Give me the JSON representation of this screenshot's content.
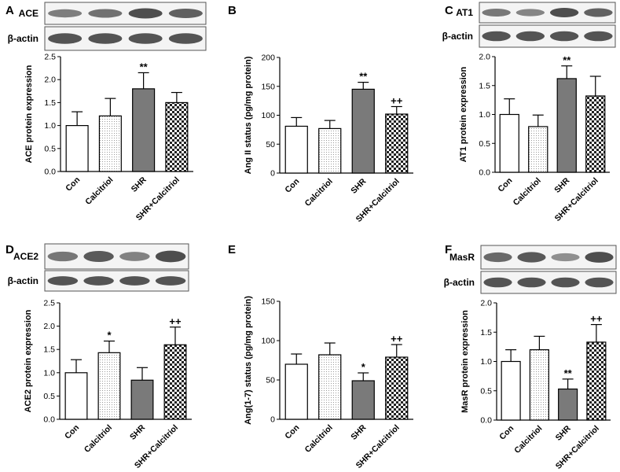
{
  "figure": {
    "panels": [
      {
        "letter": "A",
        "protein": "ACE",
        "loading": "β-actin"
      },
      {
        "letter": "B"
      },
      {
        "letter": "C",
        "protein": "AT1",
        "loading": "β-actin"
      },
      {
        "letter": "D",
        "protein": "ACE2",
        "loading": "β-actin"
      },
      {
        "letter": "E"
      },
      {
        "letter": "F",
        "protein": "MasR",
        "loading": "β-actin"
      }
    ]
  },
  "colors": {
    "con": "#ffffff",
    "calcitriol": "#f2f2f2",
    "shr": "#7a7a7a",
    "shr_calcitriol": "checker",
    "axis": "#000000"
  },
  "chart_data": [
    {
      "type": "bar",
      "panel": "A",
      "categories": [
        "Con",
        "Calcitriol",
        "SHR",
        "SHR+Calcitriol"
      ],
      "values": [
        1.0,
        1.21,
        1.8,
        1.5
      ],
      "errors": [
        0.3,
        0.38,
        0.35,
        0.22
      ],
      "annotations": [
        "",
        "",
        "**",
        ""
      ],
      "xlabel": "",
      "ylabel": "ACE protein expression",
      "ylim": [
        0,
        2.5
      ],
      "yticks": [
        "0.0",
        "0.5",
        "1.0",
        "1.5",
        "2.0",
        "2.5"
      ],
      "grid": false
    },
    {
      "type": "bar",
      "panel": "B",
      "categories": [
        "Con",
        "Calcitriol",
        "SHR",
        "SHR+Calcitriol"
      ],
      "values": [
        81,
        77,
        145,
        102
      ],
      "errors": [
        15,
        14,
        12,
        13
      ],
      "annotations": [
        "",
        "",
        "**",
        "++"
      ],
      "xlabel": "",
      "ylabel": "Ang II status (pg/mg protein)",
      "ylim": [
        0,
        200
      ],
      "yticks": [
        "0",
        "50",
        "100",
        "150",
        "200"
      ],
      "grid": false
    },
    {
      "type": "bar",
      "panel": "C",
      "categories": [
        "Con",
        "Calcitriol",
        "SHR",
        "SHR+Calcitriol"
      ],
      "values": [
        1.0,
        0.79,
        1.62,
        1.32
      ],
      "errors": [
        0.27,
        0.2,
        0.22,
        0.34
      ],
      "annotations": [
        "",
        "",
        "**",
        ""
      ],
      "xlabel": "",
      "ylabel": "AT1 protein expression",
      "ylim": [
        0,
        2.0
      ],
      "yticks": [
        "0.0",
        "0.5",
        "1.0",
        "1.5",
        "2.0"
      ],
      "grid": false
    },
    {
      "type": "bar",
      "panel": "D",
      "categories": [
        "Con",
        "Calcitriol",
        "SHR",
        "SHR+Calcitriol"
      ],
      "values": [
        1.0,
        1.43,
        0.84,
        1.6
      ],
      "errors": [
        0.28,
        0.25,
        0.27,
        0.38
      ],
      "annotations": [
        "",
        "*",
        "",
        "++"
      ],
      "xlabel": "",
      "ylabel": "ACE2 protein expression",
      "ylim": [
        0,
        2.5
      ],
      "yticks": [
        "0.0",
        "0.5",
        "1.0",
        "1.5",
        "2.0",
        "2.5"
      ],
      "grid": false
    },
    {
      "type": "bar",
      "panel": "E",
      "categories": [
        "Con",
        "Calcitriol",
        "SHR",
        "SHR+Calcitriol"
      ],
      "values": [
        70,
        82,
        49,
        79
      ],
      "errors": [
        13,
        15,
        10,
        16
      ],
      "annotations": [
        "",
        "",
        "*",
        "++"
      ],
      "xlabel": "",
      "ylabel": "Ang(1-7) status (pg/mg protein)",
      "ylim": [
        0,
        150
      ],
      "yticks": [
        "0",
        "50",
        "100",
        "150"
      ],
      "grid": false
    },
    {
      "type": "bar",
      "panel": "F",
      "categories": [
        "Con",
        "Calcitriol",
        "SHR",
        "SHR+Calcitriol"
      ],
      "values": [
        1.0,
        1.2,
        0.53,
        1.33
      ],
      "errors": [
        0.2,
        0.23,
        0.17,
        0.3
      ],
      "annotations": [
        "",
        "",
        "**",
        "++"
      ],
      "xlabel": "",
      "ylabel": "MasR protein expression",
      "ylim": [
        0,
        2.0
      ],
      "yticks": [
        "0.0",
        "0.5",
        "1.0",
        "1.5",
        "2.0"
      ],
      "grid": false
    }
  ]
}
